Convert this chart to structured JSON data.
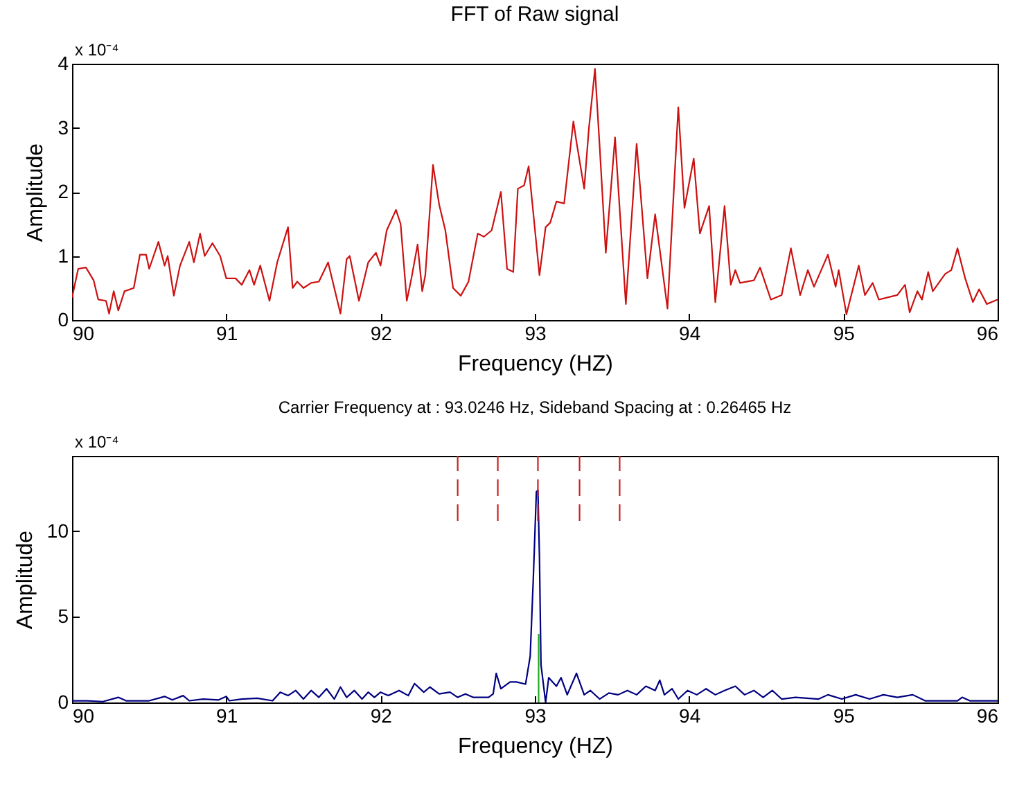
{
  "chart_data": [
    {
      "type": "line",
      "title": "FFT of Raw signal",
      "xlabel": "Frequency (HZ)",
      "ylabel": "Amplitude",
      "annotations": [
        "x 10⁻⁴"
      ],
      "xlim": [
        90,
        96
      ],
      "xticks": [
        90,
        91,
        92,
        93,
        94,
        95,
        96
      ],
      "ylim": [
        0,
        4
      ],
      "yticks": [
        0,
        1,
        2,
        3,
        4
      ],
      "series": [
        {
          "color": "#cc1111",
          "x": [
            90.0,
            90.04,
            90.09,
            90.14,
            90.17,
            90.22,
            90.24,
            90.27,
            90.3,
            90.34,
            90.4,
            90.44,
            90.48,
            90.5,
            90.56,
            90.6,
            90.62,
            90.66,
            90.7,
            90.76,
            90.79,
            90.83,
            90.86,
            90.91,
            90.96,
            91.0,
            91.06,
            91.1,
            91.15,
            91.18,
            91.22,
            91.28,
            91.33,
            91.4,
            91.43,
            91.46,
            91.5,
            91.55,
            91.6,
            91.66,
            91.69,
            91.74,
            91.78,
            91.8,
            91.86,
            91.92,
            91.97,
            92.0,
            92.04,
            92.1,
            92.13,
            92.17,
            92.2,
            92.24,
            92.27,
            92.29,
            92.34,
            92.38,
            92.42,
            92.47,
            92.52,
            92.57,
            92.63,
            92.67,
            92.72,
            92.78,
            92.82,
            92.86,
            92.89,
            92.93,
            92.96,
            93.03,
            93.07,
            93.1,
            93.14,
            93.19,
            93.25,
            93.27,
            93.32,
            93.35,
            93.39,
            93.42,
            93.46,
            93.52,
            93.59,
            93.66,
            93.73,
            93.78,
            93.86,
            93.93,
            93.97,
            94.03,
            94.07,
            94.13,
            94.17,
            94.23,
            94.27,
            94.3,
            94.33,
            94.42,
            94.46,
            94.53,
            94.6,
            94.66,
            94.72,
            94.77,
            94.81,
            94.9,
            94.95,
            94.97,
            95.02,
            95.1,
            95.14,
            95.19,
            95.23,
            95.35,
            95.4,
            95.43,
            95.48,
            95.51,
            95.55,
            95.58,
            95.66,
            95.7,
            95.74,
            95.79,
            95.84,
            95.88,
            95.93,
            96.0
          ],
          "values": [
            0.35,
            0.8,
            0.82,
            0.62,
            0.32,
            0.3,
            0.1,
            0.45,
            0.15,
            0.45,
            0.5,
            1.02,
            1.02,
            0.8,
            1.22,
            0.85,
            1.0,
            0.38,
            0.85,
            1.22,
            0.9,
            1.35,
            1.0,
            1.2,
            1.0,
            0.65,
            0.65,
            0.55,
            0.78,
            0.55,
            0.85,
            0.3,
            0.9,
            1.45,
            0.5,
            0.6,
            0.5,
            0.58,
            0.6,
            0.9,
            0.6,
            0.1,
            0.95,
            1.0,
            0.3,
            0.9,
            1.05,
            0.85,
            1.4,
            1.72,
            1.5,
            0.3,
            0.65,
            1.18,
            0.45,
            0.7,
            2.42,
            1.8,
            1.4,
            0.5,
            0.38,
            0.6,
            1.35,
            1.3,
            1.4,
            2.0,
            0.8,
            0.75,
            2.05,
            2.1,
            2.4,
            0.7,
            1.45,
            1.52,
            1.85,
            1.82,
            3.1,
            2.78,
            2.05,
            2.98,
            3.92,
            2.72,
            1.05,
            2.85,
            0.25,
            2.75,
            0.65,
            1.65,
            0.18,
            3.32,
            1.75,
            2.52,
            1.35,
            1.78,
            0.28,
            1.78,
            0.55,
            0.78,
            0.58,
            0.62,
            0.82,
            0.32,
            0.39,
            1.12,
            0.39,
            0.78,
            0.52,
            1.02,
            0.52,
            0.78,
            0.09,
            0.85,
            0.39,
            0.58,
            0.32,
            0.39,
            0.55,
            0.12,
            0.45,
            0.32,
            0.75,
            0.45,
            0.72,
            0.78,
            1.12,
            0.65,
            0.28,
            0.48,
            0.25,
            0.32
          ]
        }
      ]
    },
    {
      "type": "line",
      "title": "Carrier Frequency at : 93.0246 Hz, Sideband Spacing at : 0.26465 Hz",
      "xlabel": "Frequency (HZ)",
      "ylabel": "Amplitude",
      "annotations": [
        "x 10⁻⁴"
      ],
      "xlim": [
        90,
        96
      ],
      "xticks": [
        90,
        91,
        92,
        93,
        94,
        95,
        96
      ],
      "ylim": [
        0,
        14.4
      ],
      "yticks": [
        0,
        5,
        10
      ],
      "series": [
        {
          "color": "#000080",
          "x": [
            90.0,
            90.1,
            90.2,
            90.3,
            90.35,
            90.5,
            90.6,
            90.65,
            90.72,
            90.76,
            90.85,
            90.95,
            91.0,
            91.02,
            91.1,
            91.2,
            91.3,
            91.35,
            91.4,
            91.45,
            91.5,
            91.55,
            91.6,
            91.65,
            91.7,
            91.74,
            91.78,
            91.83,
            91.88,
            91.92,
            91.96,
            92.0,
            92.05,
            92.12,
            92.18,
            92.22,
            92.28,
            92.32,
            92.38,
            92.45,
            92.5,
            92.55,
            92.6,
            92.7,
            92.73,
            92.75,
            92.78,
            92.84,
            92.88,
            92.94,
            92.97,
            92.99,
            93.01,
            93.02,
            93.03,
            93.04,
            93.07,
            93.09,
            93.14,
            93.17,
            93.21,
            93.27,
            93.32,
            93.36,
            93.42,
            93.48,
            93.54,
            93.6,
            93.66,
            93.72,
            93.78,
            93.81,
            93.84,
            93.89,
            93.93,
            93.99,
            94.05,
            94.11,
            94.17,
            94.23,
            94.3,
            94.36,
            94.42,
            94.48,
            94.54,
            94.6,
            94.69,
            94.84,
            94.9,
            94.99,
            95.08,
            95.17,
            95.26,
            95.35,
            95.45,
            95.53,
            95.74,
            95.77,
            95.82,
            95.92,
            96.0
          ],
          "values": [
            0.1,
            0.1,
            0.05,
            0.3,
            0.1,
            0.1,
            0.35,
            0.15,
            0.4,
            0.1,
            0.2,
            0.15,
            0.35,
            0.1,
            0.2,
            0.25,
            0.1,
            0.6,
            0.4,
            0.7,
            0.2,
            0.7,
            0.3,
            0.8,
            0.2,
            0.9,
            0.3,
            0.7,
            0.2,
            0.6,
            0.3,
            0.6,
            0.4,
            0.7,
            0.4,
            1.1,
            0.6,
            0.9,
            0.5,
            0.6,
            0.3,
            0.5,
            0.3,
            0.3,
            0.5,
            1.7,
            0.8,
            1.2,
            1.2,
            1.07,
            2.7,
            7.2,
            12.3,
            12.4,
            8.5,
            2.2,
            0,
            1.45,
            0.95,
            1.45,
            0.45,
            1.7,
            0.45,
            0.7,
            0.2,
            0.55,
            0.45,
            0.7,
            0.45,
            0.95,
            0.7,
            1.3,
            0.45,
            0.8,
            0.2,
            0.7,
            0.45,
            0.8,
            0.45,
            0.7,
            0.95,
            0.45,
            0.7,
            0.3,
            0.7,
            0.2,
            0.3,
            0.2,
            0.45,
            0.2,
            0.45,
            0.2,
            0.45,
            0.3,
            0.45,
            0.1,
            0.1,
            0.3,
            0.1,
            0.1,
            0.1
          ]
        },
        {
          "color": "#22aa22",
          "x": [
            93.0246,
            93.0246
          ],
          "values": [
            0,
            4
          ]
        },
        {
          "color": "#cc2222",
          "line_style": "dashed",
          "x": [
            92.5,
            92.5
          ],
          "values": [
            10.6,
            14.4
          ]
        },
        {
          "color": "#cc2222",
          "line_style": "dashed",
          "x": [
            92.76,
            92.76
          ],
          "values": [
            10.6,
            14.4
          ]
        },
        {
          "color": "#cc2222",
          "line_style": "dashed",
          "x": [
            93.02,
            93.02
          ],
          "values": [
            10.6,
            14.4
          ]
        },
        {
          "color": "#cc2222",
          "line_style": "dashed",
          "x": [
            93.29,
            93.29
          ],
          "values": [
            10.6,
            14.4
          ]
        },
        {
          "color": "#cc2222",
          "line_style": "dashed",
          "x": [
            93.55,
            93.55
          ],
          "values": [
            10.6,
            14.4
          ]
        }
      ]
    }
  ]
}
